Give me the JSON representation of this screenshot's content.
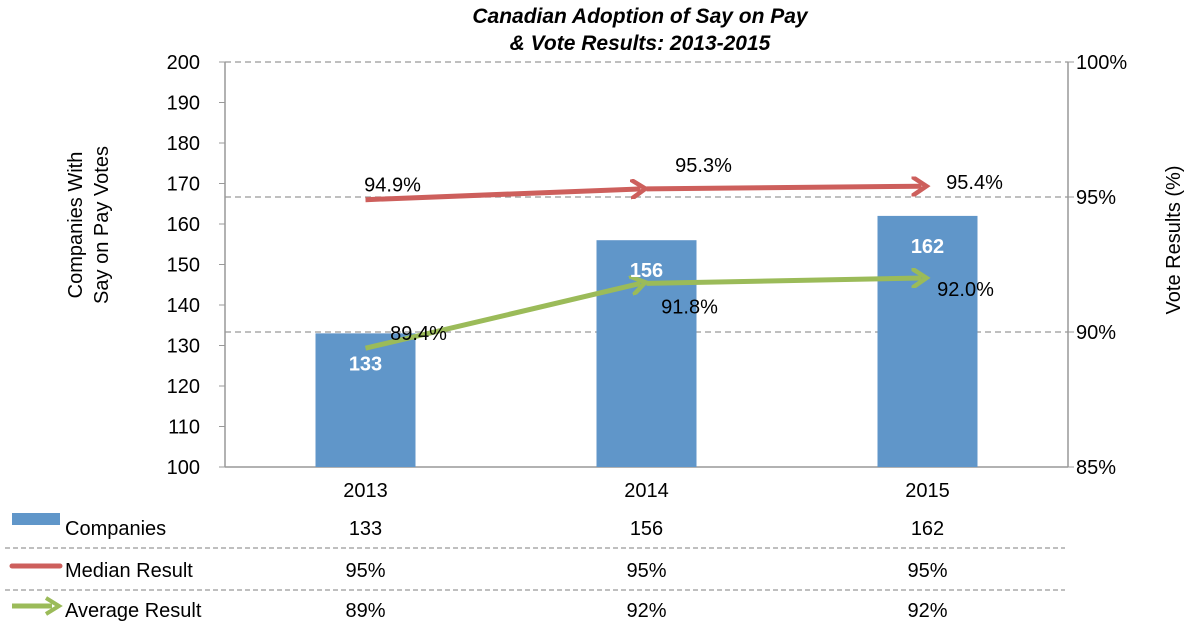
{
  "chart_data": {
    "type": "bar",
    "title_lines": [
      "Canadian Adoption of Say on Pay",
      "& Vote Results: 2013-2015"
    ],
    "categories": [
      "2013",
      "2014",
      "2015"
    ],
    "ylabel_lines": [
      "Companies With",
      "Say on Pay Votes"
    ],
    "y2label": "Vote Results (%)",
    "ylim": [
      100,
      200
    ],
    "y_ticks": [
      100,
      110,
      120,
      130,
      140,
      150,
      160,
      170,
      180,
      190,
      200
    ],
    "y2lim": [
      85,
      100
    ],
    "y2_ticks": [
      85,
      90,
      95,
      100
    ],
    "y2_tick_labels": [
      "85%",
      "90%",
      "95%",
      "100%"
    ],
    "series": [
      {
        "name": "Companies",
        "type": "bar",
        "axis": "left",
        "values": [
          133,
          156,
          162
        ],
        "labels": [
          "133",
          "156",
          "162"
        ],
        "color": "#6096c9"
      },
      {
        "name": "Median Result",
        "type": "line",
        "axis": "right",
        "values": [
          94.9,
          95.3,
          95.4
        ],
        "labels": [
          "94.9%",
          "95.3%",
          "95.4%"
        ],
        "color": "#cd5f5c"
      },
      {
        "name": "Average Result",
        "type": "line",
        "axis": "right",
        "values": [
          89.4,
          91.8,
          92.0
        ],
        "labels": [
          "89.4%",
          "91.8%",
          "92.0%"
        ],
        "color": "#9bbb59"
      }
    ],
    "table": [
      [
        "133",
        "156",
        "162"
      ],
      [
        "95%",
        "95%",
        "95%"
      ],
      [
        "89%",
        "92%",
        "92%"
      ]
    ],
    "grid": "dashed at right-axis major ticks",
    "legend": "data table below chart"
  }
}
